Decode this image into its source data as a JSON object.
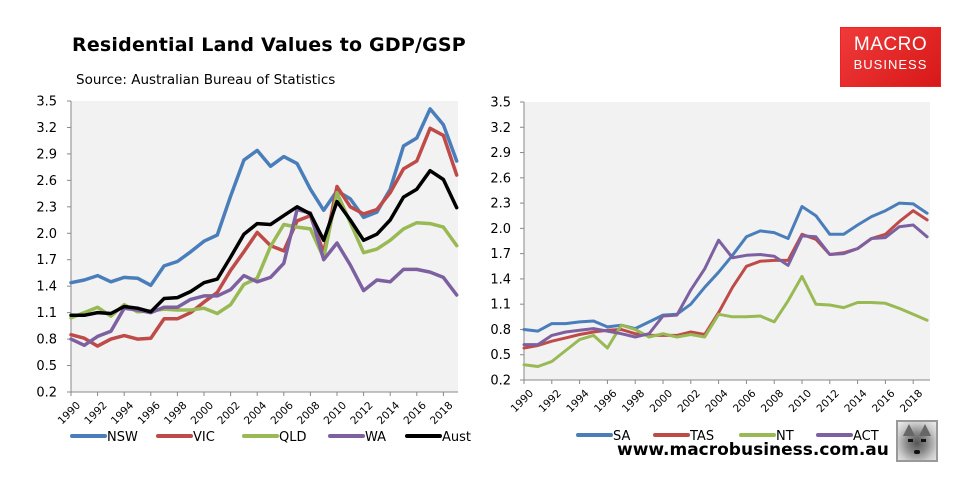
{
  "header": {
    "title": "Residential Land Values to GDP/GSP",
    "subtitle": "Source: Australian Bureau of Statistics"
  },
  "logo": {
    "line1": "MACRO",
    "line2": "BUSINESS"
  },
  "footer": {
    "url": "www.macrobusiness.com.au"
  },
  "chart_data": [
    {
      "type": "line",
      "title": "",
      "xlabel": "",
      "ylabel": "",
      "ylim": [
        0.2,
        3.5
      ],
      "yticks": [
        "3.5",
        "3.2",
        "2.9",
        "2.6",
        "2.3",
        "2.0",
        "1.7",
        "1.4",
        "1.1",
        "0.8",
        "0.5",
        "0.2"
      ],
      "xticks": [
        "1990",
        "1992",
        "1994",
        "1996",
        "1998",
        "2000",
        "2002",
        "2004",
        "2006",
        "2008",
        "2010",
        "2012",
        "2014",
        "2016",
        "2018"
      ],
      "x": [
        1990,
        1991,
        1992,
        1993,
        1994,
        1995,
        1996,
        1997,
        1998,
        1999,
        2000,
        2001,
        2002,
        2003,
        2004,
        2005,
        2006,
        2007,
        2008,
        2009,
        2010,
        2011,
        2012,
        2013,
        2014,
        2015,
        2016,
        2017,
        2018,
        2019
      ],
      "grid": false,
      "legend": "bottom",
      "series": [
        {
          "name": "NSW",
          "color": "#4a7ebb",
          "values": [
            1.44,
            1.47,
            1.52,
            1.45,
            1.5,
            1.49,
            1.41,
            1.63,
            1.68,
            1.79,
            1.91,
            1.98,
            2.42,
            2.83,
            2.94,
            2.76,
            2.87,
            2.79,
            2.5,
            2.26,
            2.48,
            2.39,
            2.18,
            2.24,
            2.5,
            2.99,
            3.08,
            3.41,
            3.23,
            2.82
          ]
        },
        {
          "name": "VIC",
          "color": "#be4b48",
          "values": [
            0.85,
            0.81,
            0.72,
            0.8,
            0.84,
            0.8,
            0.81,
            1.03,
            1.03,
            1.1,
            1.22,
            1.33,
            1.58,
            1.79,
            2.01,
            1.86,
            1.8,
            2.14,
            2.2,
            1.78,
            2.53,
            2.3,
            2.22,
            2.27,
            2.46,
            2.73,
            2.82,
            3.19,
            3.11,
            2.66
          ]
        },
        {
          "name": "QLD",
          "color": "#98b954",
          "values": [
            1.04,
            1.1,
            1.16,
            1.06,
            1.19,
            1.11,
            1.12,
            1.14,
            1.13,
            1.13,
            1.15,
            1.09,
            1.19,
            1.42,
            1.49,
            1.85,
            2.1,
            2.07,
            2.05,
            1.72,
            2.46,
            2.12,
            1.78,
            1.82,
            1.92,
            2.05,
            2.12,
            2.11,
            2.07,
            1.86
          ]
        },
        {
          "name": "WA",
          "color": "#7d60a0",
          "values": [
            0.8,
            0.73,
            0.83,
            0.89,
            1.15,
            1.13,
            1.1,
            1.16,
            1.16,
            1.25,
            1.29,
            1.29,
            1.36,
            1.52,
            1.45,
            1.5,
            1.66,
            2.27,
            2.23,
            1.7,
            1.89,
            1.64,
            1.35,
            1.47,
            1.45,
            1.59,
            1.59,
            1.56,
            1.5,
            1.3
          ]
        },
        {
          "name": "Aust",
          "color": "#000000",
          "values": [
            1.07,
            1.07,
            1.1,
            1.09,
            1.17,
            1.15,
            1.11,
            1.26,
            1.27,
            1.34,
            1.44,
            1.48,
            1.73,
            1.99,
            2.11,
            2.1,
            2.2,
            2.3,
            2.22,
            1.92,
            2.36,
            2.15,
            1.92,
            1.99,
            2.15,
            2.41,
            2.5,
            2.71,
            2.61,
            2.29
          ]
        }
      ]
    },
    {
      "type": "line",
      "title": "",
      "xlabel": "",
      "ylabel": "",
      "ylim": [
        0.2,
        3.5
      ],
      "yticks": [
        "3.5",
        "3.2",
        "2.9",
        "2.6",
        "2.3",
        "2.0",
        "1.7",
        "1.4",
        "1.1",
        "0.8",
        "0.5",
        "0.2"
      ],
      "xticks": [
        "1990",
        "1992",
        "1994",
        "1996",
        "1998",
        "2000",
        "2002",
        "2004",
        "2006",
        "2008",
        "2010",
        "2012",
        "2014",
        "2016",
        "2018"
      ],
      "x": [
        1990,
        1991,
        1992,
        1993,
        1994,
        1995,
        1996,
        1997,
        1998,
        1999,
        2000,
        2001,
        2002,
        2003,
        2004,
        2005,
        2006,
        2007,
        2008,
        2009,
        2010,
        2011,
        2012,
        2013,
        2014,
        2015,
        2016,
        2017,
        2018,
        2019
      ],
      "grid": false,
      "legend": "bottom",
      "series": [
        {
          "name": "SA",
          "color": "#4a7ebb",
          "values": [
            0.8,
            0.78,
            0.87,
            0.87,
            0.89,
            0.9,
            0.83,
            0.85,
            0.81,
            0.89,
            0.97,
            0.98,
            1.1,
            1.3,
            1.48,
            1.68,
            1.9,
            1.97,
            1.95,
            1.88,
            2.26,
            2.15,
            1.93,
            1.93,
            2.04,
            2.14,
            2.21,
            2.3,
            2.29,
            2.18
          ]
        },
        {
          "name": "TAS",
          "color": "#be4b48",
          "values": [
            0.58,
            0.61,
            0.66,
            0.7,
            0.74,
            0.77,
            0.79,
            0.8,
            0.75,
            0.73,
            0.73,
            0.73,
            0.77,
            0.74,
            1.0,
            1.3,
            1.55,
            1.61,
            1.62,
            1.62,
            1.93,
            1.87,
            1.69,
            1.71,
            1.76,
            1.88,
            1.93,
            2.08,
            2.21,
            2.1
          ]
        },
        {
          "name": "NT",
          "color": "#98b954",
          "values": [
            0.38,
            0.36,
            0.42,
            0.55,
            0.68,
            0.73,
            0.58,
            0.85,
            0.8,
            0.71,
            0.75,
            0.71,
            0.74,
            0.71,
            0.98,
            0.95,
            0.95,
            0.96,
            0.89,
            1.14,
            1.43,
            1.1,
            1.09,
            1.06,
            1.12,
            1.12,
            1.11,
            1.05,
            0.98,
            0.91
          ]
        },
        {
          "name": "ACT",
          "color": "#7d60a0",
          "values": [
            0.62,
            0.62,
            0.73,
            0.77,
            0.79,
            0.81,
            0.78,
            0.75,
            0.71,
            0.75,
            0.96,
            0.97,
            1.27,
            1.52,
            1.86,
            1.65,
            1.68,
            1.69,
            1.67,
            1.56,
            1.91,
            1.9,
            1.69,
            1.7,
            1.76,
            1.88,
            1.89,
            2.02,
            2.04,
            1.9
          ]
        }
      ]
    }
  ]
}
